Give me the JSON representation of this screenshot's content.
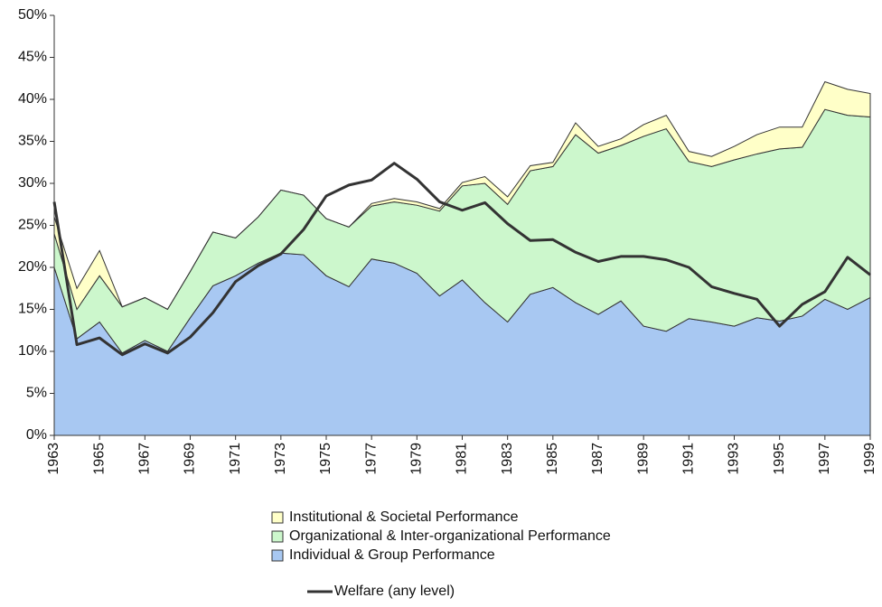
{
  "chart_data": {
    "type": "stacked_area_line",
    "x": [
      1963,
      1964,
      1965,
      1966,
      1967,
      1968,
      1969,
      1970,
      1971,
      1972,
      1973,
      1974,
      1975,
      1976,
      1977,
      1978,
      1979,
      1980,
      1981,
      1982,
      1983,
      1984,
      1985,
      1986,
      1987,
      1988,
      1989,
      1990,
      1991,
      1992,
      1993,
      1994,
      1995,
      1996,
      1997,
      1998,
      1999
    ],
    "xlim": [
      1963,
      1999
    ],
    "xticks": [
      1963,
      1965,
      1967,
      1969,
      1971,
      1973,
      1975,
      1977,
      1979,
      1981,
      1983,
      1985,
      1987,
      1989,
      1991,
      1993,
      1995,
      1997,
      1999
    ],
    "ylim": [
      0,
      50
    ],
    "yticks": [
      {
        "value": 0,
        "label": "0%"
      },
      {
        "value": 5,
        "label": "5%"
      },
      {
        "value": 10,
        "label": "10%"
      },
      {
        "value": 15,
        "label": "15%"
      },
      {
        "value": 20,
        "label": "20%"
      },
      {
        "value": 25,
        "label": "25%"
      },
      {
        "value": 30,
        "label": "30%"
      },
      {
        "value": 35,
        "label": "35%"
      },
      {
        "value": 40,
        "label": "40%"
      },
      {
        "value": 45,
        "label": "45%"
      },
      {
        "value": 50,
        "label": "50%"
      }
    ],
    "series": [
      {
        "name": "Individual & Group Performance",
        "color": "#a8c8f2",
        "values": [
          20,
          11.5,
          13.5,
          9.8,
          11.3,
          10,
          14,
          17.8,
          19,
          20.5,
          21.7,
          21.5,
          19,
          17.7,
          21,
          20.5,
          19.3,
          16.6,
          18.5,
          15.8,
          13.5,
          16.8,
          17.6,
          15.8,
          14.4,
          16,
          13,
          12.4,
          13.9,
          13.5,
          13,
          14,
          13.6,
          14.2,
          16.2,
          15,
          16.4
        ]
      },
      {
        "name": "Organizational & Inter-organizational Performance",
        "color": "#ccf7cc",
        "values": [
          4,
          3.5,
          5.5,
          5.5,
          5.1,
          5,
          5.5,
          6.4,
          4.5,
          5.5,
          7.5,
          7.1,
          6.8,
          7.1,
          6.3,
          7.3,
          8.1,
          10.1,
          11.2,
          14.2,
          14,
          14.7,
          14.4,
          20,
          19.2,
          18.5,
          22.6,
          24.1,
          18.7,
          18.5,
          19.8,
          19.5,
          20.5,
          20.1,
          22.6,
          23.1,
          21.5
        ]
      },
      {
        "name": "Institutional & Societal Performance",
        "color": "#ffffc8",
        "values": [
          2,
          2.5,
          3,
          0,
          0,
          0,
          0,
          0,
          0,
          0,
          0,
          0,
          0,
          0,
          0.3,
          0.4,
          0.4,
          0.3,
          0.4,
          0.8,
          0.9,
          0.6,
          0.5,
          1.4,
          0.8,
          0.8,
          1.4,
          1.6,
          1.2,
          1.2,
          1.6,
          2.3,
          2.6,
          2.4,
          3.3,
          3.1,
          2.8
        ]
      }
    ],
    "line": {
      "name": "Welfare (any level)",
      "color": "#333333",
      "values": [
        27.8,
        10.8,
        11.6,
        9.6,
        10.9,
        9.8,
        11.7,
        14.6,
        18.3,
        20.2,
        21.6,
        24.5,
        28.5,
        29.8,
        30.4,
        32.4,
        30.5,
        27.8,
        26.8,
        27.7,
        25.2,
        23.2,
        23.3,
        21.8,
        20.7,
        21.3,
        21.3,
        20.9,
        20,
        17.7,
        16.9,
        16.2,
        13,
        15.6,
        17.1,
        21.2,
        19.1
      ]
    }
  }
}
